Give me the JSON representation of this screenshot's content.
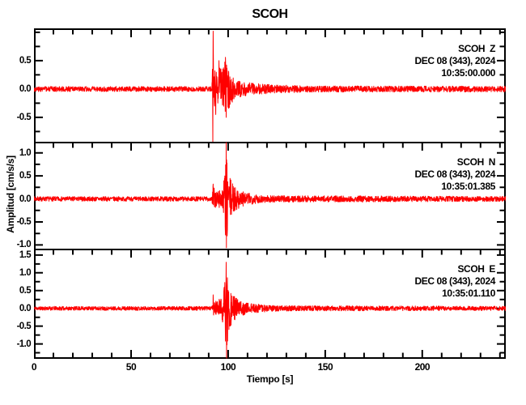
{
  "title": "SCOH",
  "colors": {
    "trace": "#ff0000",
    "axis": "#000000",
    "background": "#ffffff",
    "text": "#000000"
  },
  "x_axis": {
    "label": "Tiempo [s]",
    "min": 0,
    "max": 243,
    "minor_tick_step": 10,
    "major_ticks": [
      0,
      50,
      100,
      150,
      200
    ],
    "major_tick_labels": [
      "0",
      "50",
      "100",
      "150",
      "200"
    ]
  },
  "y_axis": {
    "label": "Amplitud [cm/s/s]",
    "minor_tick_step": 0.25
  },
  "chart_data": {
    "type": "line",
    "subtype": "seismogram",
    "station": "SCOH",
    "x_unit": "seconds",
    "traces": [
      {
        "component": "Z",
        "annotation_lines": [
          "SCOH  Z",
          "DEC 08 (343), 2024",
          "10:35:00.000"
        ],
        "ylim": [
          -0.93,
          1.07
        ],
        "ytick_values": [
          0.5,
          0.0,
          -0.5
        ],
        "ytick_labels": [
          "0.5",
          "0.0",
          "-0.5"
        ],
        "noise_amplitude": 0.045,
        "envelope_t_amp": [
          [
            0,
            0.045
          ],
          [
            91.6,
            0.045
          ],
          [
            92.0,
            0.7
          ],
          [
            92.8,
            0.45
          ],
          [
            94,
            0.32
          ],
          [
            95.5,
            0.45
          ],
          [
            97,
            0.38
          ],
          [
            98.5,
            0.52
          ],
          [
            100,
            0.36
          ],
          [
            102,
            0.26
          ],
          [
            104,
            0.19
          ],
          [
            108,
            0.13
          ],
          [
            117,
            0.09
          ],
          [
            127,
            0.07
          ],
          [
            142,
            0.055
          ],
          [
            243,
            0.05
          ]
        ],
        "spikes_t_amp": [
          [
            92.1,
            -0.93
          ],
          [
            92.25,
            1.02
          ],
          [
            93.6,
            -0.45
          ],
          [
            95.3,
            0.5
          ],
          [
            98.6,
            0.56
          ],
          [
            99.0,
            -0.5
          ]
        ]
      },
      {
        "component": "N",
        "annotation_lines": [
          "SCOH  N",
          "DEC 08 (343), 2024",
          "10:35:01.385"
        ],
        "ylim": [
          -1.08,
          1.24
        ],
        "ytick_values": [
          1.0,
          0.5,
          0.0,
          -0.5,
          -1.0
        ],
        "ytick_labels": [
          "1.0",
          "0.5",
          "0.0",
          "-0.5",
          "-1.0"
        ],
        "noise_amplitude": 0.05,
        "envelope_t_amp": [
          [
            0,
            0.05
          ],
          [
            91.6,
            0.05
          ],
          [
            92.1,
            0.3
          ],
          [
            93.2,
            0.2
          ],
          [
            96.5,
            0.22
          ],
          [
            98,
            0.45
          ],
          [
            98.9,
            1.0
          ],
          [
            99.6,
            0.8
          ],
          [
            100.6,
            0.5
          ],
          [
            102.5,
            0.32
          ],
          [
            105,
            0.22
          ],
          [
            109,
            0.14
          ],
          [
            116,
            0.09
          ],
          [
            126,
            0.07
          ],
          [
            243,
            0.055
          ]
        ],
        "spikes_t_amp": [
          [
            92.3,
            0.32
          ],
          [
            98.95,
            1.22
          ],
          [
            99.1,
            -1.06
          ],
          [
            99.5,
            -0.8
          ]
        ]
      },
      {
        "component": "E",
        "annotation_lines": [
          "SCOH  E",
          "DEC 08 (343), 2024",
          "10:35:01.110"
        ],
        "ylim": [
          -1.42,
          1.68
        ],
        "ytick_values": [
          1.5,
          1.0,
          0.5,
          0.0,
          -0.5,
          -1.0
        ],
        "ytick_labels": [
          "1.5",
          "1.0",
          "0.5",
          "0.0",
          "-0.5",
          "-1.0"
        ],
        "noise_amplitude": 0.055,
        "envelope_t_amp": [
          [
            0,
            0.055
          ],
          [
            91.6,
            0.055
          ],
          [
            92.1,
            0.35
          ],
          [
            93.2,
            0.22
          ],
          [
            95.5,
            0.26
          ],
          [
            97.5,
            0.5
          ],
          [
            98.6,
            0.95
          ],
          [
            99.3,
            1.1
          ],
          [
            100.2,
            0.75
          ],
          [
            101.5,
            0.5
          ],
          [
            103.5,
            0.32
          ],
          [
            106.5,
            0.21
          ],
          [
            111,
            0.14
          ],
          [
            121,
            0.09
          ],
          [
            131,
            0.075
          ],
          [
            243,
            0.06
          ]
        ],
        "spikes_t_amp": [
          [
            92.3,
            0.38
          ],
          [
            98.95,
            1.3
          ],
          [
            99.15,
            -1.4
          ]
        ]
      }
    ]
  }
}
